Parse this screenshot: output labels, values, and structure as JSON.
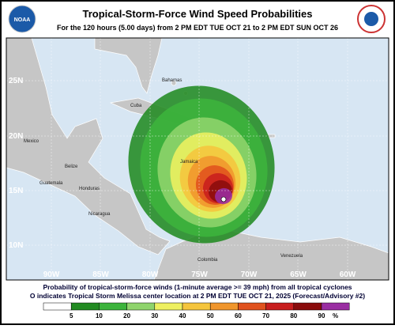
{
  "header": {
    "title": "Tropical-Storm-Force Wind Speed Probabilities",
    "subtitle": "For the 120 hours (5.00 days) from 2 PM EDT TUE OCT 21 to 2 PM EDT SUN OCT 26",
    "logo_text": "NOAA"
  },
  "map": {
    "longitude_labels": [
      "90W",
      "85W",
      "80W",
      "75W",
      "70W",
      "65W",
      "60W"
    ],
    "latitude_labels": [
      "25N",
      "20N",
      "15N",
      "10N"
    ],
    "places": [
      "Bahamas",
      "Cuba",
      "Mexico",
      "Belize",
      "Guatemala",
      "Honduras",
      "Nicaragua",
      "Jamaica",
      "Colombia",
      "Venezuela"
    ]
  },
  "caption": [
    "Probability of tropical-storm-force winds (1-minute average >= 39 mph) from all tropical cyclones",
    "O indicates Tropical Storm Melissa center location at 2 PM EDT TUE OCT 21, 2025 (Forecast/Advisory #2)"
  ],
  "legend": {
    "labels": [
      "5",
      "10",
      "20",
      "30",
      "40",
      "50",
      "60",
      "70",
      "80",
      "90",
      "%"
    ],
    "colors": [
      "#ffffff",
      "#228b22",
      "#3cb43c",
      "#8fd46c",
      "#eef060",
      "#f5c53c",
      "#f0962c",
      "#e0521e",
      "#c81e1e",
      "#8a0c0c",
      "#9a2ea2"
    ]
  }
}
